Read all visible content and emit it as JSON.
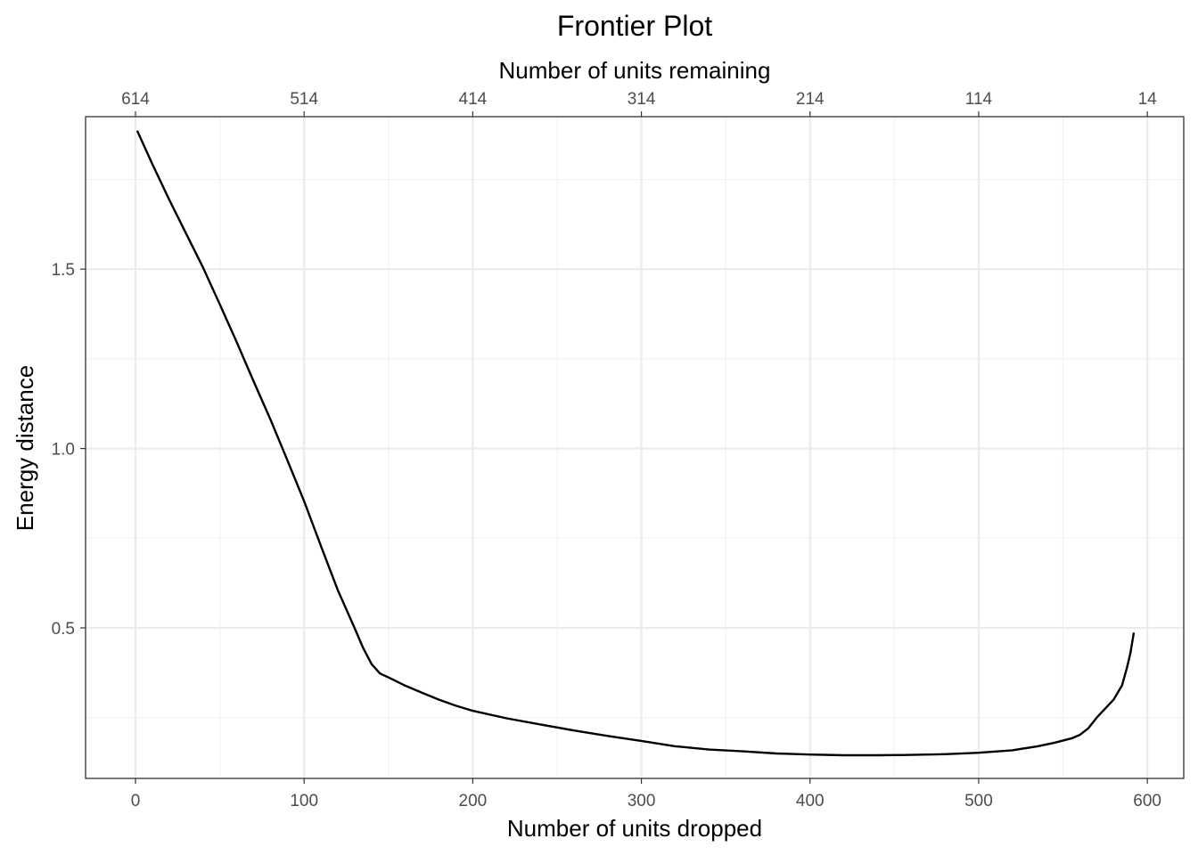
{
  "chart_data": {
    "type": "line",
    "title": "Frontier Plot",
    "xlabel": "Number of units dropped",
    "ylabel": "Energy distance",
    "x2label": "Number of units remaining",
    "xlim": [
      -29.6,
      621.6
    ],
    "ylim": [
      0.0805,
      1.925
    ],
    "x_ticks": [
      0,
      100,
      200,
      300,
      400,
      500,
      600
    ],
    "x_tick_labels": [
      "0",
      "100",
      "200",
      "300",
      "400",
      "500",
      "600"
    ],
    "x_minor_ticks": [
      50,
      150,
      250,
      350,
      450,
      550
    ],
    "x2_ticks": [
      0,
      100,
      200,
      300,
      400,
      500,
      600
    ],
    "x2_tick_labels": [
      "614",
      "514",
      "414",
      "314",
      "214",
      "114",
      "14"
    ],
    "y_ticks": [
      0.5,
      1.0,
      1.5
    ],
    "y_tick_labels": [
      "0.5",
      "1.0",
      "1.5"
    ],
    "y_minor_ticks": [
      0.25,
      0.75,
      1.25,
      1.75
    ],
    "grid": true,
    "line_color": "#000000",
    "series": [
      {
        "x": [
          1,
          10,
          20,
          30,
          40,
          50,
          60,
          70,
          80,
          90,
          100,
          110,
          120,
          130,
          135,
          140,
          145,
          150,
          160,
          170,
          180,
          190,
          200,
          220,
          240,
          260,
          280,
          300,
          320,
          340,
          360,
          380,
          400,
          420,
          440,
          460,
          480,
          500,
          520,
          535,
          545,
          555,
          560,
          565,
          570,
          575,
          580,
          585,
          588,
          590,
          592
        ],
        "y": [
          1.886,
          1.793,
          1.694,
          1.599,
          1.505,
          1.402,
          1.297,
          1.188,
          1.081,
          0.968,
          0.853,
          0.728,
          0.605,
          0.499,
          0.444,
          0.399,
          0.373,
          0.362,
          0.339,
          0.319,
          0.3,
          0.283,
          0.269,
          0.248,
          0.231,
          0.214,
          0.199,
          0.185,
          0.17,
          0.161,
          0.156,
          0.15,
          0.147,
          0.145,
          0.145,
          0.146,
          0.148,
          0.152,
          0.159,
          0.17,
          0.18,
          0.192,
          0.202,
          0.22,
          0.25,
          0.275,
          0.3,
          0.34,
          0.39,
          0.43,
          0.487
        ]
      }
    ]
  }
}
